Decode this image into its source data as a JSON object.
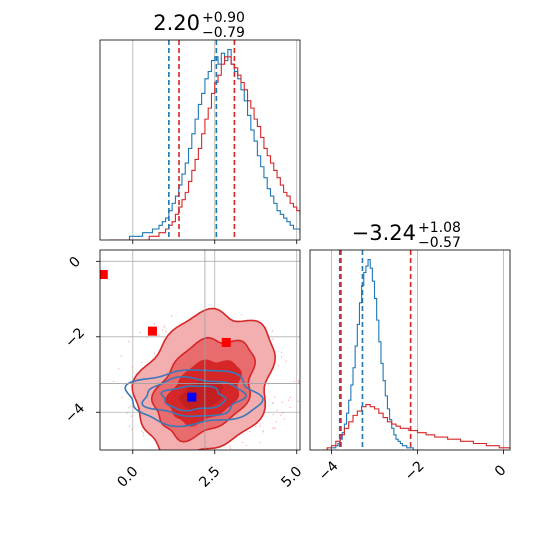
{
  "chart_data": [
    {
      "type": "histogram",
      "panel": "top-left",
      "title": {
        "main": "2.20",
        "plus": "+0.90",
        "minus": "−0.79"
      },
      "xlim": [
        -1.0,
        5.1
      ],
      "xticks": [
        0.0,
        2.5,
        5.0
      ],
      "grid": true,
      "series": [
        {
          "name": "",
          "color": "#1f77b4",
          "x_start": -0.7,
          "bin_width": 0.1,
          "counts": [
            0,
            0,
            0,
            0,
            0,
            0,
            1,
            1,
            1,
            1,
            2,
            2,
            2,
            3,
            3,
            4,
            5,
            6,
            8,
            10,
            12,
            15,
            18,
            21,
            25,
            29,
            33,
            37,
            40,
            44,
            46,
            49,
            50,
            48,
            51,
            49,
            52,
            48,
            46,
            44,
            41,
            38,
            34,
            30,
            27,
            23,
            20,
            17,
            14,
            12,
            10,
            8,
            7,
            6,
            5,
            4,
            3,
            3,
            2,
            2,
            1,
            1,
            1,
            0,
            0,
            0,
            0,
            0,
            0,
            0
          ]
        },
        {
          "name": "",
          "color": "#d62728",
          "x_start": -0.7,
          "bin_width": 0.1,
          "counts": [
            0,
            0,
            0,
            0,
            0,
            0,
            0,
            0,
            0,
            0,
            0,
            0,
            1,
            1,
            1,
            2,
            2,
            3,
            4,
            5,
            7,
            9,
            11,
            13,
            16,
            19,
            22,
            25,
            29,
            33,
            36,
            40,
            43,
            45,
            48,
            50,
            50,
            48,
            47,
            45,
            43,
            41,
            38,
            36,
            33,
            31,
            28,
            25,
            23,
            21,
            19,
            17,
            15,
            13,
            12,
            10,
            9,
            8,
            7,
            6,
            5,
            4,
            4,
            3,
            2,
            2,
            2,
            1,
            1,
            1,
            0,
            0,
            0,
            0,
            0,
            0,
            0,
            0
          ]
        }
      ],
      "lines": [
        {
          "x": 1.1,
          "color": "#1f77b4"
        },
        {
          "x": 2.55,
          "color": "#1f77b4"
        },
        {
          "x": 1.41,
          "color": "#d62728"
        },
        {
          "x": 3.1,
          "color": "#d62728"
        }
      ]
    },
    {
      "type": "contour",
      "panel": "bottom-left",
      "xlim": [
        -1.0,
        5.1
      ],
      "ylim": [
        -5.0,
        0.3
      ],
      "xticks": [
        0.0,
        2.5,
        5.0
      ],
      "xtick_labels": [
        "0.0",
        "2.5",
        "5.0"
      ],
      "yticks": [
        0,
        -2,
        -4
      ],
      "ytick_labels": [
        "0",
        "−2",
        "−4"
      ],
      "grid": true,
      "red_contours": [
        {
          "cx": 2.2,
          "cy": -3.25,
          "rx": 2.4,
          "ry": 1.6,
          "rot": -50,
          "fill": "#f3aeb0"
        },
        {
          "cx": 2.2,
          "cy": -3.35,
          "rx": 1.75,
          "ry": 1.05,
          "rot": -45,
          "fill": "#e86b6e"
        },
        {
          "cx": 2.2,
          "cy": -3.45,
          "rx": 1.2,
          "ry": 0.7,
          "rot": -35,
          "fill": "#d62728"
        },
        {
          "cx": 2.1,
          "cy": -3.55,
          "rx": 0.7,
          "ry": 0.38,
          "rot": -20,
          "fill": "#c11f22"
        }
      ],
      "blue_contours": [
        {
          "cx": 1.85,
          "cy": -3.6,
          "rx": 2.0,
          "ry": 0.72
        },
        {
          "cx": 1.85,
          "cy": -3.6,
          "rx": 1.5,
          "ry": 0.5
        },
        {
          "cx": 1.85,
          "cy": -3.62,
          "rx": 0.95,
          "ry": 0.32
        }
      ],
      "markers": [
        {
          "x": -0.9,
          "y": -0.35,
          "color": "#ff0000"
        },
        {
          "x": 0.6,
          "y": -1.85,
          "color": "#ff0000"
        },
        {
          "x": 2.85,
          "y": -2.15,
          "color": "#ff0000"
        },
        {
          "x": 1.8,
          "y": -3.6,
          "color": "#0000ff"
        }
      ],
      "guide_lines": {
        "x": 2.2,
        "y": -3.24
      }
    },
    {
      "type": "histogram",
      "panel": "bottom-right",
      "title": {
        "main": "−3.24",
        "plus": "+1.08",
        "minus": "−0.57"
      },
      "xlim": [
        -4.5,
        0.15
      ],
      "xticks": [
        -4,
        -2,
        0
      ],
      "xtick_labels": [
        "−4",
        "−2",
        "0"
      ],
      "grid": true,
      "series": [
        {
          "name": "",
          "color": "#1f77b4",
          "x_start": -4.2,
          "bin_width": 0.05,
          "counts": [
            0,
            0,
            0,
            0,
            1,
            1,
            2,
            3,
            5,
            8,
            12,
            17,
            23,
            30,
            38,
            48,
            58,
            68,
            76,
            82,
            85,
            88,
            84,
            78,
            70,
            60,
            50,
            40,
            32,
            25,
            19,
            14,
            10,
            7,
            5,
            4,
            3,
            2,
            2,
            1,
            1,
            1,
            0,
            0,
            0,
            0
          ]
        },
        {
          "name": "",
          "color": "#d62728",
          "x_start": -4.2,
          "bin_width": 0.1,
          "counts": [
            0,
            1,
            2,
            4,
            7,
            10,
            13,
            16,
            18,
            20,
            21,
            20,
            19,
            17,
            15,
            13,
            12,
            11,
            10,
            10,
            9,
            9,
            8,
            8,
            7,
            7,
            6,
            6,
            6,
            5,
            5,
            5,
            4,
            4,
            4,
            3,
            3,
            3,
            2,
            2,
            2,
            1,
            1,
            1,
            0,
            0
          ]
        }
      ],
      "lines": [
        {
          "x": -3.81,
          "color": "#1f77b4"
        },
        {
          "x": -3.28,
          "color": "#1f77b4"
        },
        {
          "x": -3.78,
          "color": "#d62728"
        },
        {
          "x": -2.16,
          "color": "#d62728"
        }
      ]
    }
  ]
}
